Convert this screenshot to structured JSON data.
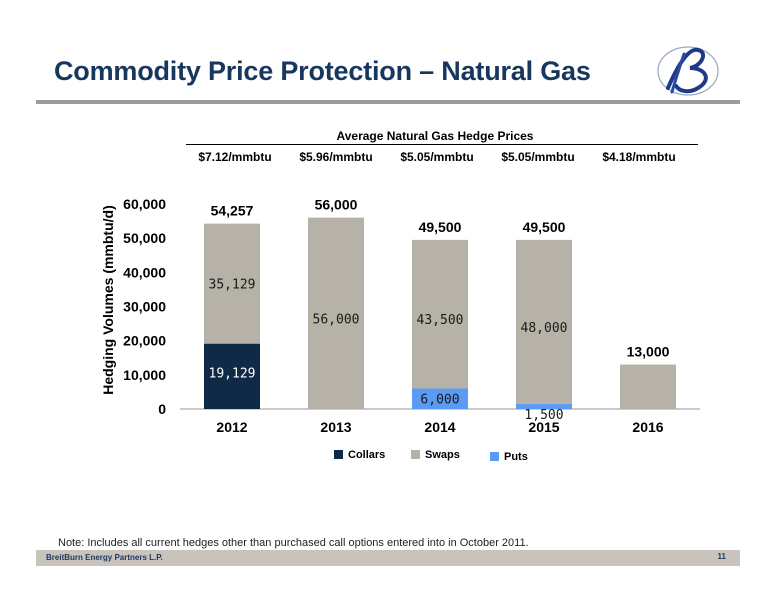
{
  "slide": {
    "title": "Commodity Price Protection – Natural Gas",
    "note": "Note:  Includes all current hedges other than purchased call options entered into in October 2011.",
    "footer_company": "BreitBurn Energy Partners L.P.",
    "page_number": "11"
  },
  "hedge_prices": {
    "heading": "Average Natural Gas Hedge Prices",
    "values": [
      "$7.12/mmbtu",
      "$5.96/mmbtu",
      "$5.05/mmbtu",
      "$5.05/mmbtu",
      "$4.18/mmbtu"
    ]
  },
  "colors": {
    "collars": "#0f2a47",
    "swaps": "#b7b2a8",
    "puts": "#5b9bf5",
    "title": "#17375e"
  },
  "chart_data": {
    "type": "bar",
    "stacked": true,
    "categories": [
      "2012",
      "2013",
      "2014",
      "2015",
      "2016"
    ],
    "ylabel": "Hedging Volumes (mmbtu/d)",
    "ylim": [
      0,
      60000
    ],
    "yticks": [
      "0",
      "10,000",
      "20,000",
      "30,000",
      "40,000",
      "50,000",
      "60,000"
    ],
    "series": [
      {
        "name": "Collars",
        "values": [
          19129,
          0,
          0,
          0,
          0
        ],
        "labels": [
          "19,129",
          "",
          "",
          "",
          ""
        ]
      },
      {
        "name": "Puts",
        "values": [
          0,
          0,
          6000,
          1500,
          0
        ],
        "labels": [
          "",
          "",
          "6,000",
          "1,500",
          ""
        ]
      },
      {
        "name": "Swaps",
        "values": [
          35129,
          56000,
          43500,
          48000,
          13000
        ],
        "labels": [
          "35,129",
          "56,000",
          "43,500",
          "48,000",
          ""
        ]
      }
    ],
    "totals": [
      "54,257",
      "56,000",
      "49,500",
      "49,500",
      "13,000"
    ],
    "legend": [
      "Collars",
      "Swaps",
      "Puts"
    ],
    "legend_position": "bottom",
    "grid": false
  }
}
